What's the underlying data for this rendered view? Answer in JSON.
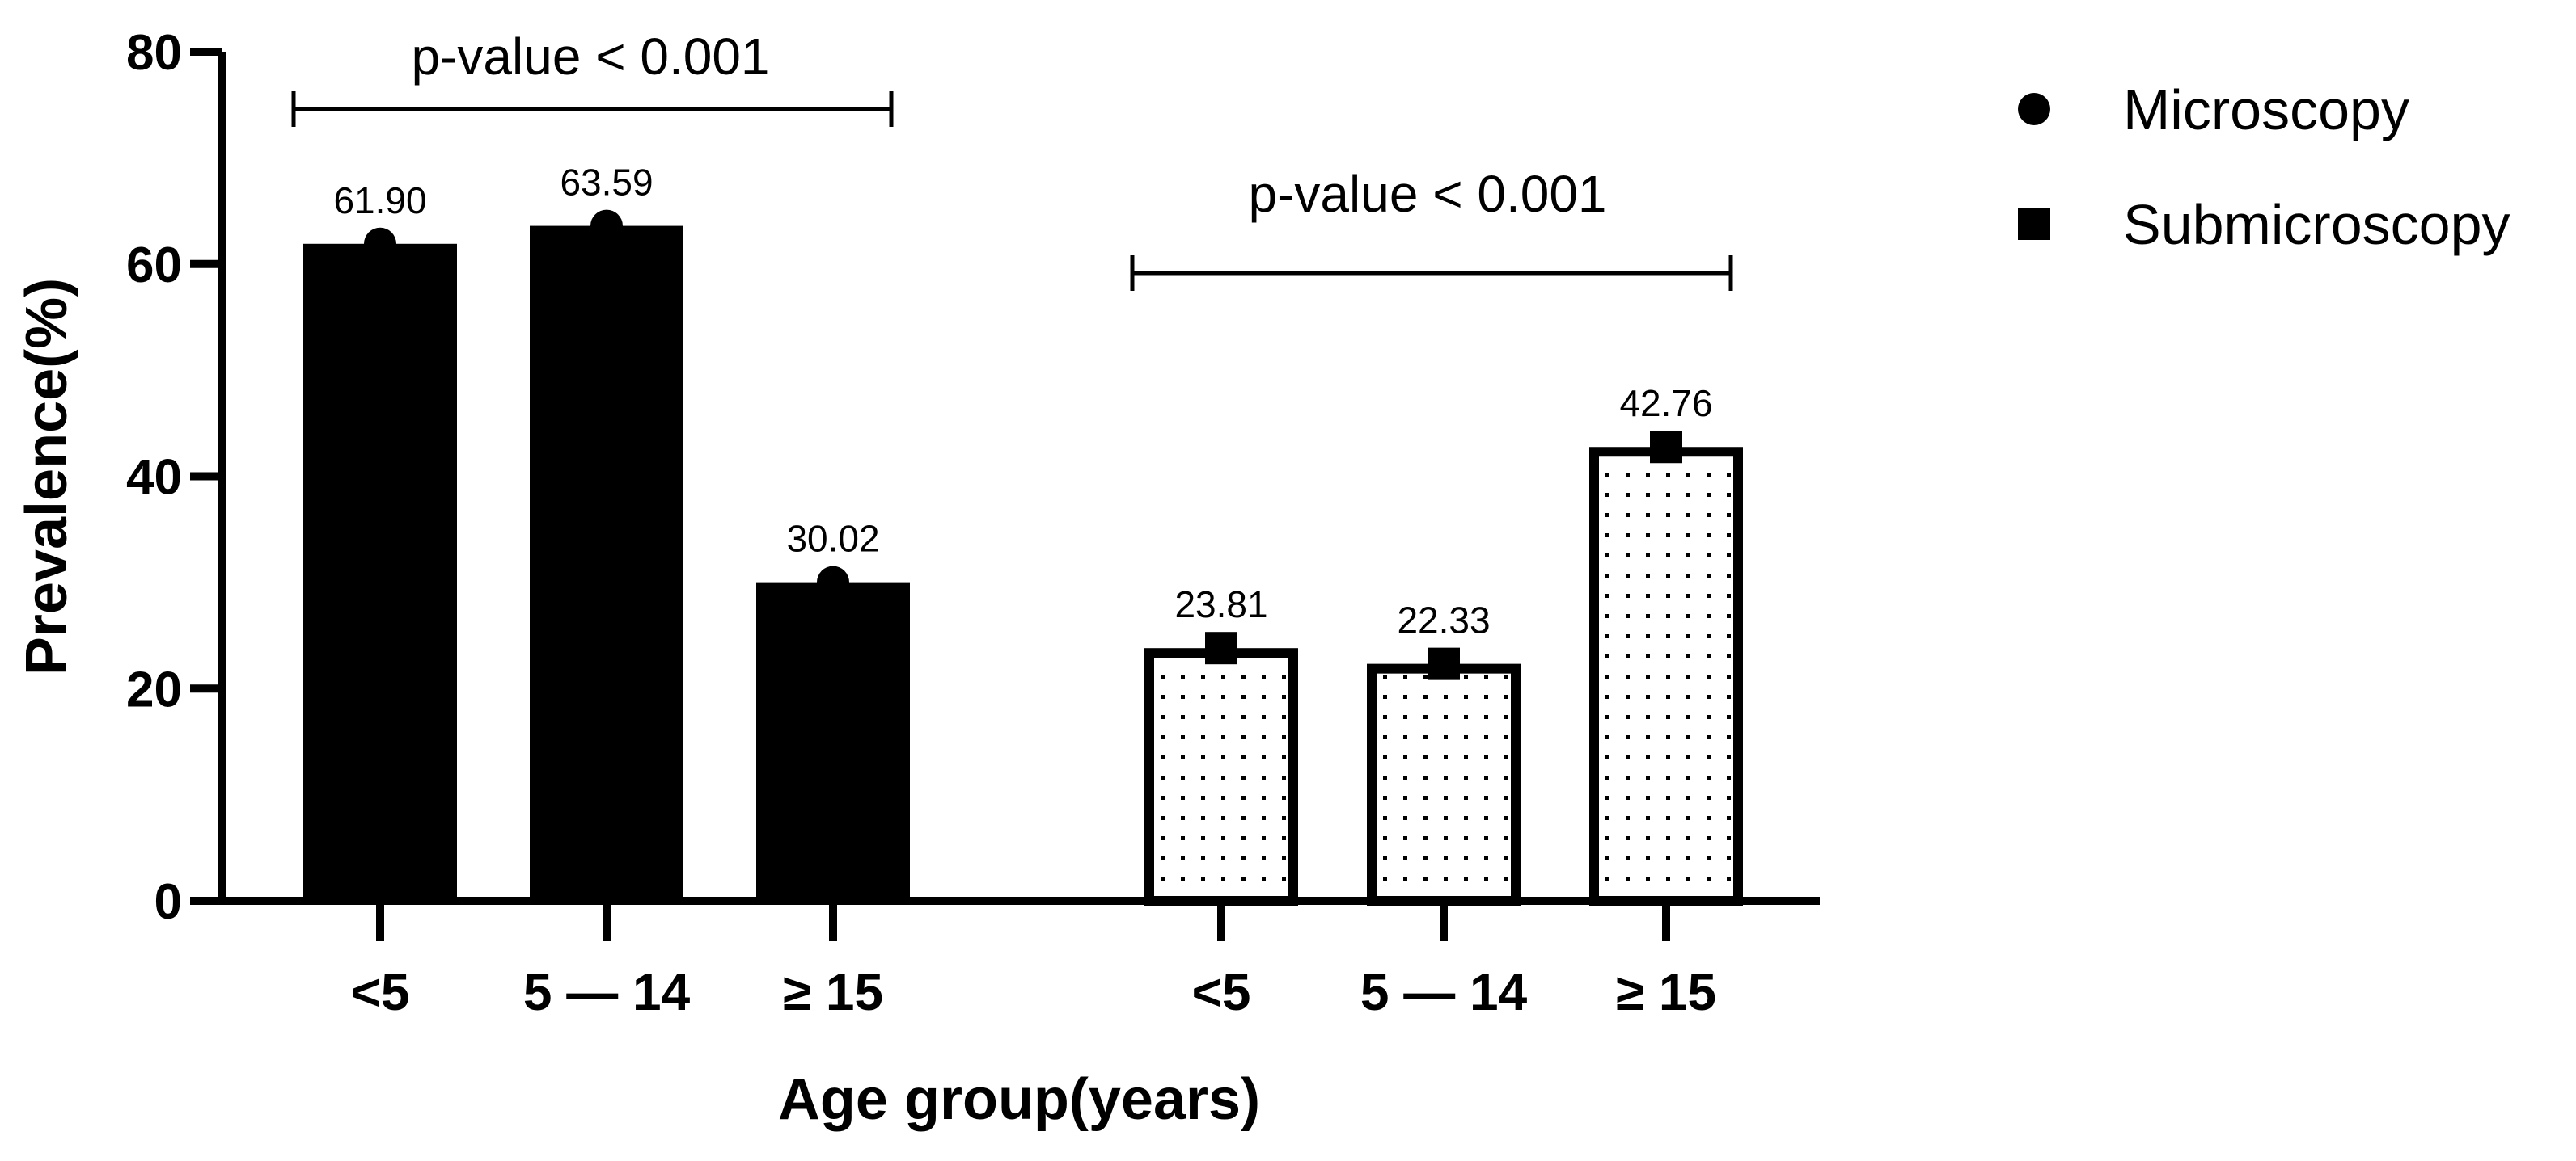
{
  "chart_data": {
    "type": "bar",
    "title": "",
    "xlabel": "Age group(years)",
    "ylabel": "Prevalence(%)",
    "ylim": [
      0,
      80
    ],
    "yticks": [
      0,
      20,
      40,
      60,
      80
    ],
    "grid": false,
    "legend_position": "top-right",
    "groups": [
      {
        "name": "Microscopy",
        "marker": "circle",
        "fill": "solid-black",
        "categories": [
          "<5",
          "5 — 14",
          "≥ 15"
        ],
        "values": [
          61.9,
          63.59,
          30.02
        ],
        "value_labels": [
          "61.90",
          "63.59",
          "30.02"
        ],
        "annotation": "p-value < 0.001"
      },
      {
        "name": "Submicroscopy",
        "marker": "square",
        "fill": "dotted-white",
        "categories": [
          "<5",
          "5 — 14",
          "≥ 15"
        ],
        "values": [
          23.81,
          22.33,
          42.76
        ],
        "value_labels": [
          "23.81",
          "22.33",
          "42.76"
        ],
        "annotation": "p-value < 0.001"
      }
    ],
    "legend": [
      {
        "label": "Microscopy",
        "marker": "circle"
      },
      {
        "label": "Submicroscopy",
        "marker": "square"
      }
    ]
  },
  "colors": {
    "ink": "#000000",
    "background": "#ffffff"
  }
}
